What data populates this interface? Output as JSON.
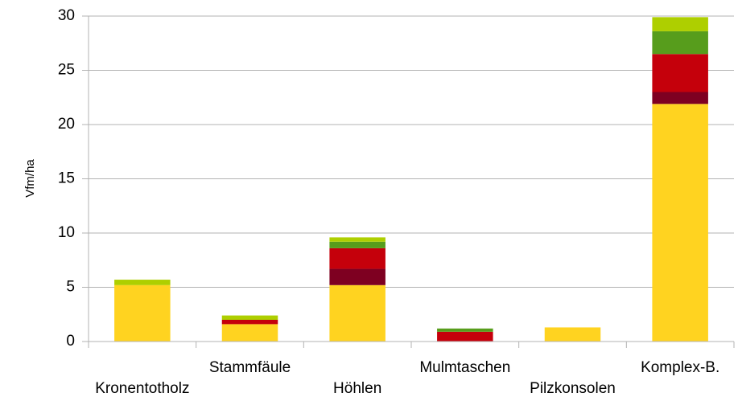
{
  "chart_data": {
    "type": "stacked-bar",
    "y_label": "Vfm/ha",
    "categories": [
      "Kronentotholz",
      "Stammfäule",
      "Höhlen",
      "Mulmtaschen",
      "Pilzkonsolen",
      "Komplex-B."
    ],
    "series": [
      {
        "color": "#ffd320",
        "values": [
          5.2,
          1.6,
          5.2,
          0,
          1.3,
          21.9
        ]
      },
      {
        "color": "#7e0021",
        "values": [
          0,
          0,
          1.5,
          0,
          0,
          1.1
        ]
      },
      {
        "color": "#c5000b",
        "values": [
          0,
          0.4,
          1.9,
          0.9,
          0,
          3.5
        ]
      },
      {
        "color": "#579d1c",
        "values": [
          0,
          0,
          0.6,
          0.3,
          0,
          2.1
        ]
      },
      {
        "color": "#aecf00",
        "values": [
          0.5,
          0.4,
          0.4,
          0,
          0,
          1.3
        ]
      }
    ],
    "ylim": [
      0,
      30
    ],
    "yticks": [
      0,
      5,
      10,
      15,
      20,
      25,
      30
    ],
    "grid": true
  }
}
